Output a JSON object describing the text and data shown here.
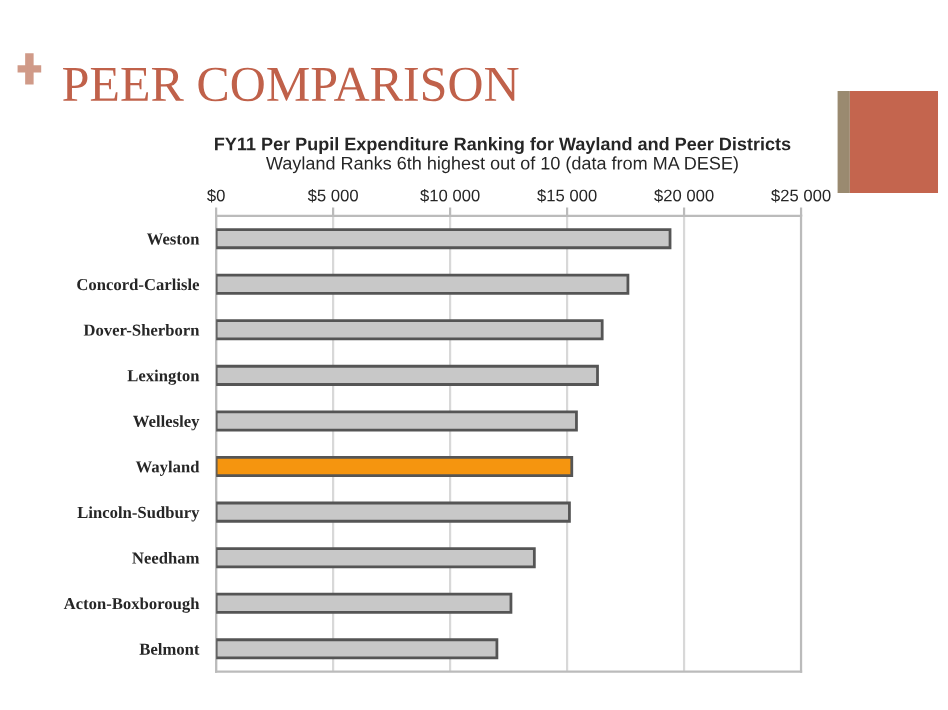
{
  "chart_data": {
    "type": "bar",
    "orientation": "horizontal",
    "title": "FY11 Per Pupil Expenditure Ranking for Wayland and Peer Districts",
    "subtitle": "Wayland Ranks 6th highest out of 10 (data from MA DESE)",
    "annotations": [
      "PEER COMPARISON"
    ],
    "categories": [
      "Weston",
      "Concord-Carlisle",
      "Dover-Sherborn",
      "Lexington",
      "Wellesley",
      "Wayland",
      "Lincoln-Sudbury",
      "Needham",
      "Acton-Boxborough",
      "Belmont"
    ],
    "values": [
      19400,
      17600,
      16500,
      16300,
      15400,
      15200,
      15100,
      13600,
      12600,
      12000
    ],
    "colors": [
      "#c8c8c8",
      "#c8c8c8",
      "#c8c8c8",
      "#c8c8c8",
      "#c8c8c8",
      "#f5950f",
      "#c8c8c8",
      "#c8c8c8",
      "#c8c8c8",
      "#c8c8c8"
    ],
    "xlim": [
      0,
      25000
    ],
    "xticks": [
      {
        "value": 0,
        "label": "$0"
      },
      {
        "value": 5000,
        "label": "$5 000"
      },
      {
        "value": 10000,
        "label": "$10 000"
      },
      {
        "value": 15000,
        "label": "$15 000"
      },
      {
        "value": 20000,
        "label": "$20 000"
      },
      {
        "value": 25000,
        "label": "$25 000"
      }
    ],
    "grid": "x",
    "legend": false
  }
}
